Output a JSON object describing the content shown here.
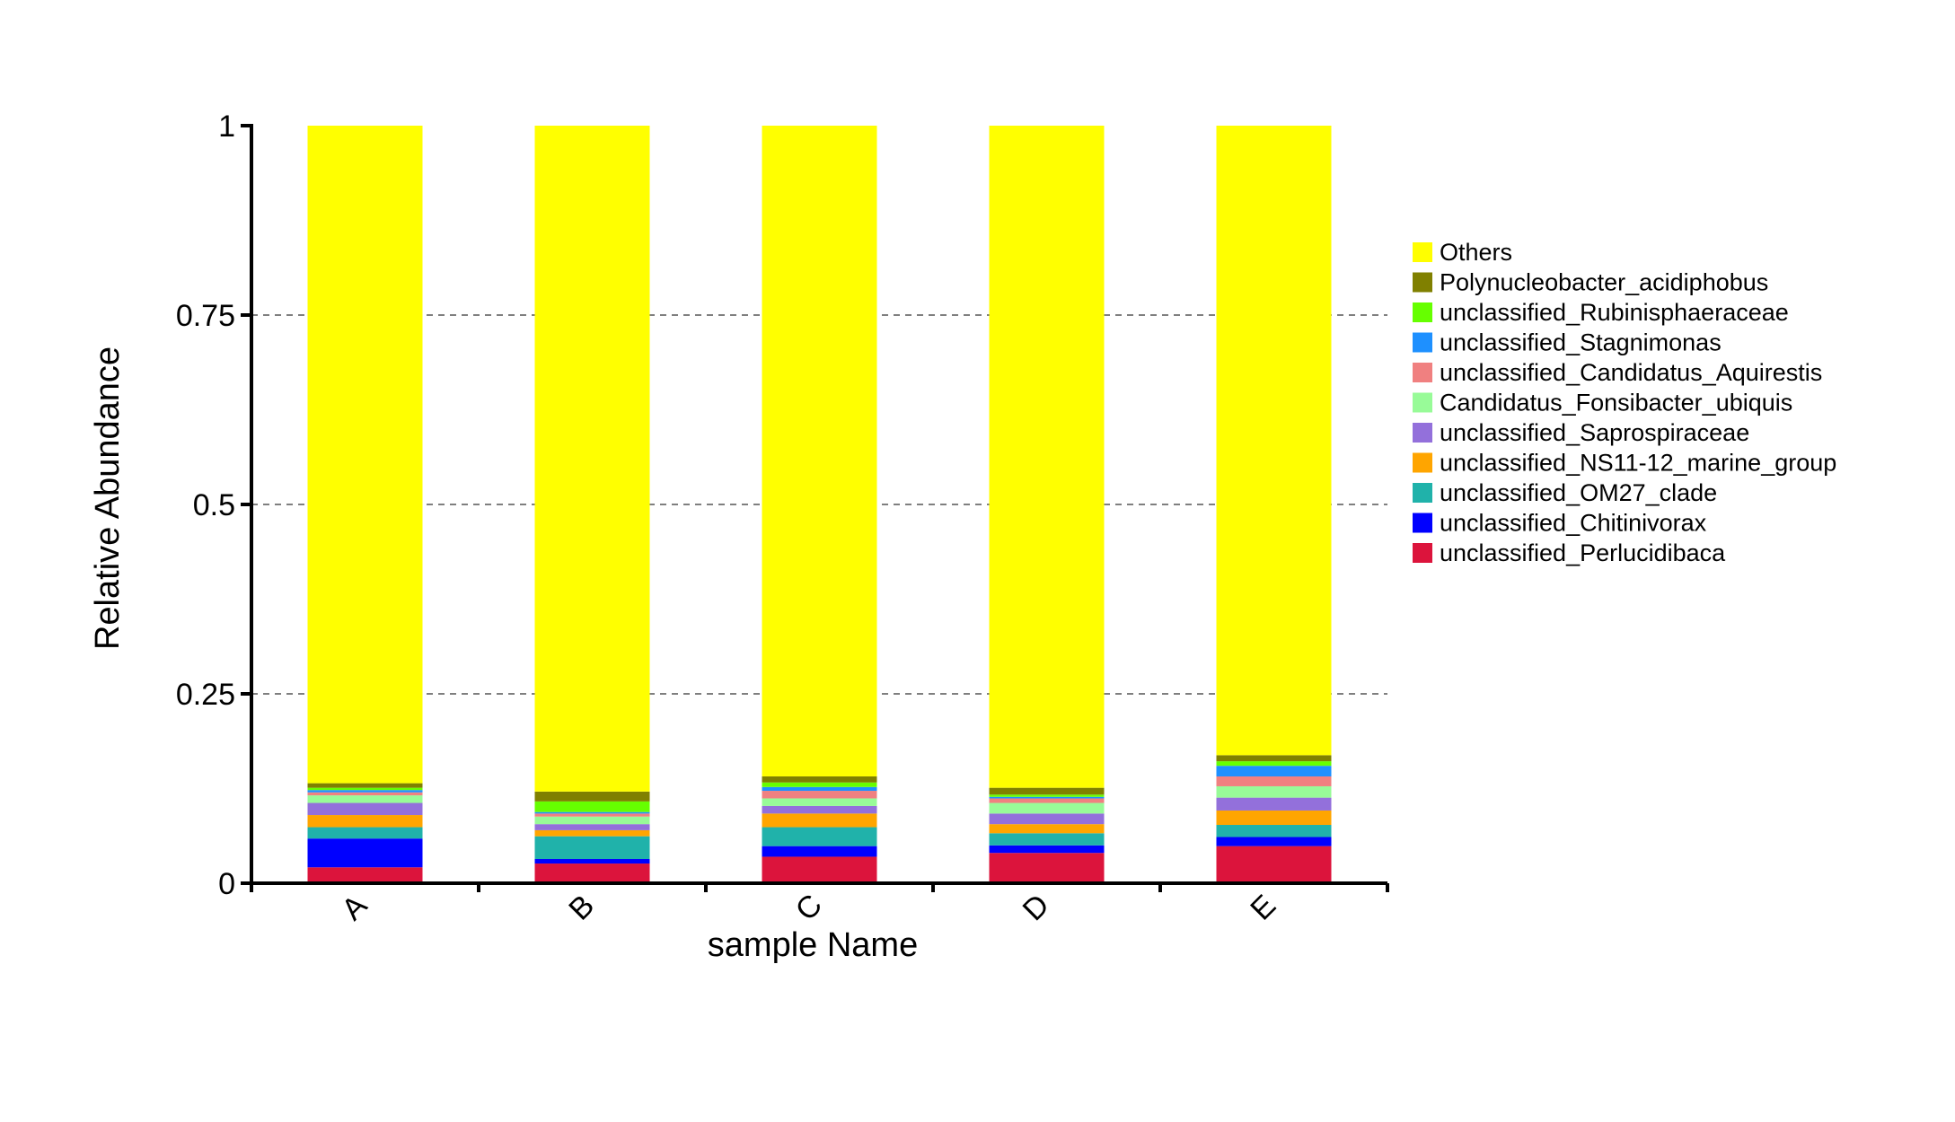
{
  "chart_data": {
    "type": "bar",
    "stacked": true,
    "xlabel": "sample Name",
    "ylabel": "Relative Abundance",
    "ylim": [
      0,
      1
    ],
    "yticks": [
      0,
      0.25,
      0.5,
      0.75,
      1
    ],
    "ytick_labels": [
      "0",
      "0.25",
      "0.5",
      "0.75",
      "1"
    ],
    "grid": "horizontal dashed at 0.25, 0.5, 0.75",
    "legend_position": "right",
    "categories": [
      "A",
      "B",
      "C",
      "D",
      "E"
    ],
    "series": [
      {
        "name": "unclassified_Perlucidibaca",
        "color": "#DC143C",
        "values": [
          0.021,
          0.026,
          0.035,
          0.04,
          0.049
        ]
      },
      {
        "name": "unclassified_Chitinivorax",
        "color": "#0000FF",
        "values": [
          0.038,
          0.006,
          0.014,
          0.01,
          0.012
        ]
      },
      {
        "name": "unclassified_OM27_clade",
        "color": "#20B2AA",
        "values": [
          0.015,
          0.03,
          0.025,
          0.016,
          0.016
        ]
      },
      {
        "name": "unclassified_NS11-12_marine_group",
        "color": "#FFA500",
        "values": [
          0.016,
          0.008,
          0.018,
          0.012,
          0.019
        ]
      },
      {
        "name": "unclassified_Saprospiraceae",
        "color": "#9370DB",
        "values": [
          0.016,
          0.008,
          0.01,
          0.014,
          0.017
        ]
      },
      {
        "name": "Candidatus_Fonsibacter_ubiquis",
        "color": "#98FB98",
        "values": [
          0.01,
          0.01,
          0.01,
          0.014,
          0.015
        ]
      },
      {
        "name": "unclassified_Candidatus_Aquirestis",
        "color": "#F08080",
        "values": [
          0.004,
          0.004,
          0.01,
          0.006,
          0.013
        ]
      },
      {
        "name": "unclassified_Stagnimonas",
        "color": "#1E90FF",
        "values": [
          0.003,
          0.002,
          0.005,
          0.002,
          0.014
        ]
      },
      {
        "name": "unclassified_Rubinisphaeraceae",
        "color": "#66FF00",
        "values": [
          0.003,
          0.014,
          0.006,
          0.003,
          0.006
        ]
      },
      {
        "name": "Polynucleobacter_acidiphobus",
        "color": "#808000",
        "values": [
          0.006,
          0.013,
          0.008,
          0.009,
          0.008
        ]
      },
      {
        "name": "Others",
        "color": "#FFFF00",
        "values": [
          0.868,
          0.879,
          0.859,
          0.874,
          0.831
        ]
      }
    ]
  }
}
